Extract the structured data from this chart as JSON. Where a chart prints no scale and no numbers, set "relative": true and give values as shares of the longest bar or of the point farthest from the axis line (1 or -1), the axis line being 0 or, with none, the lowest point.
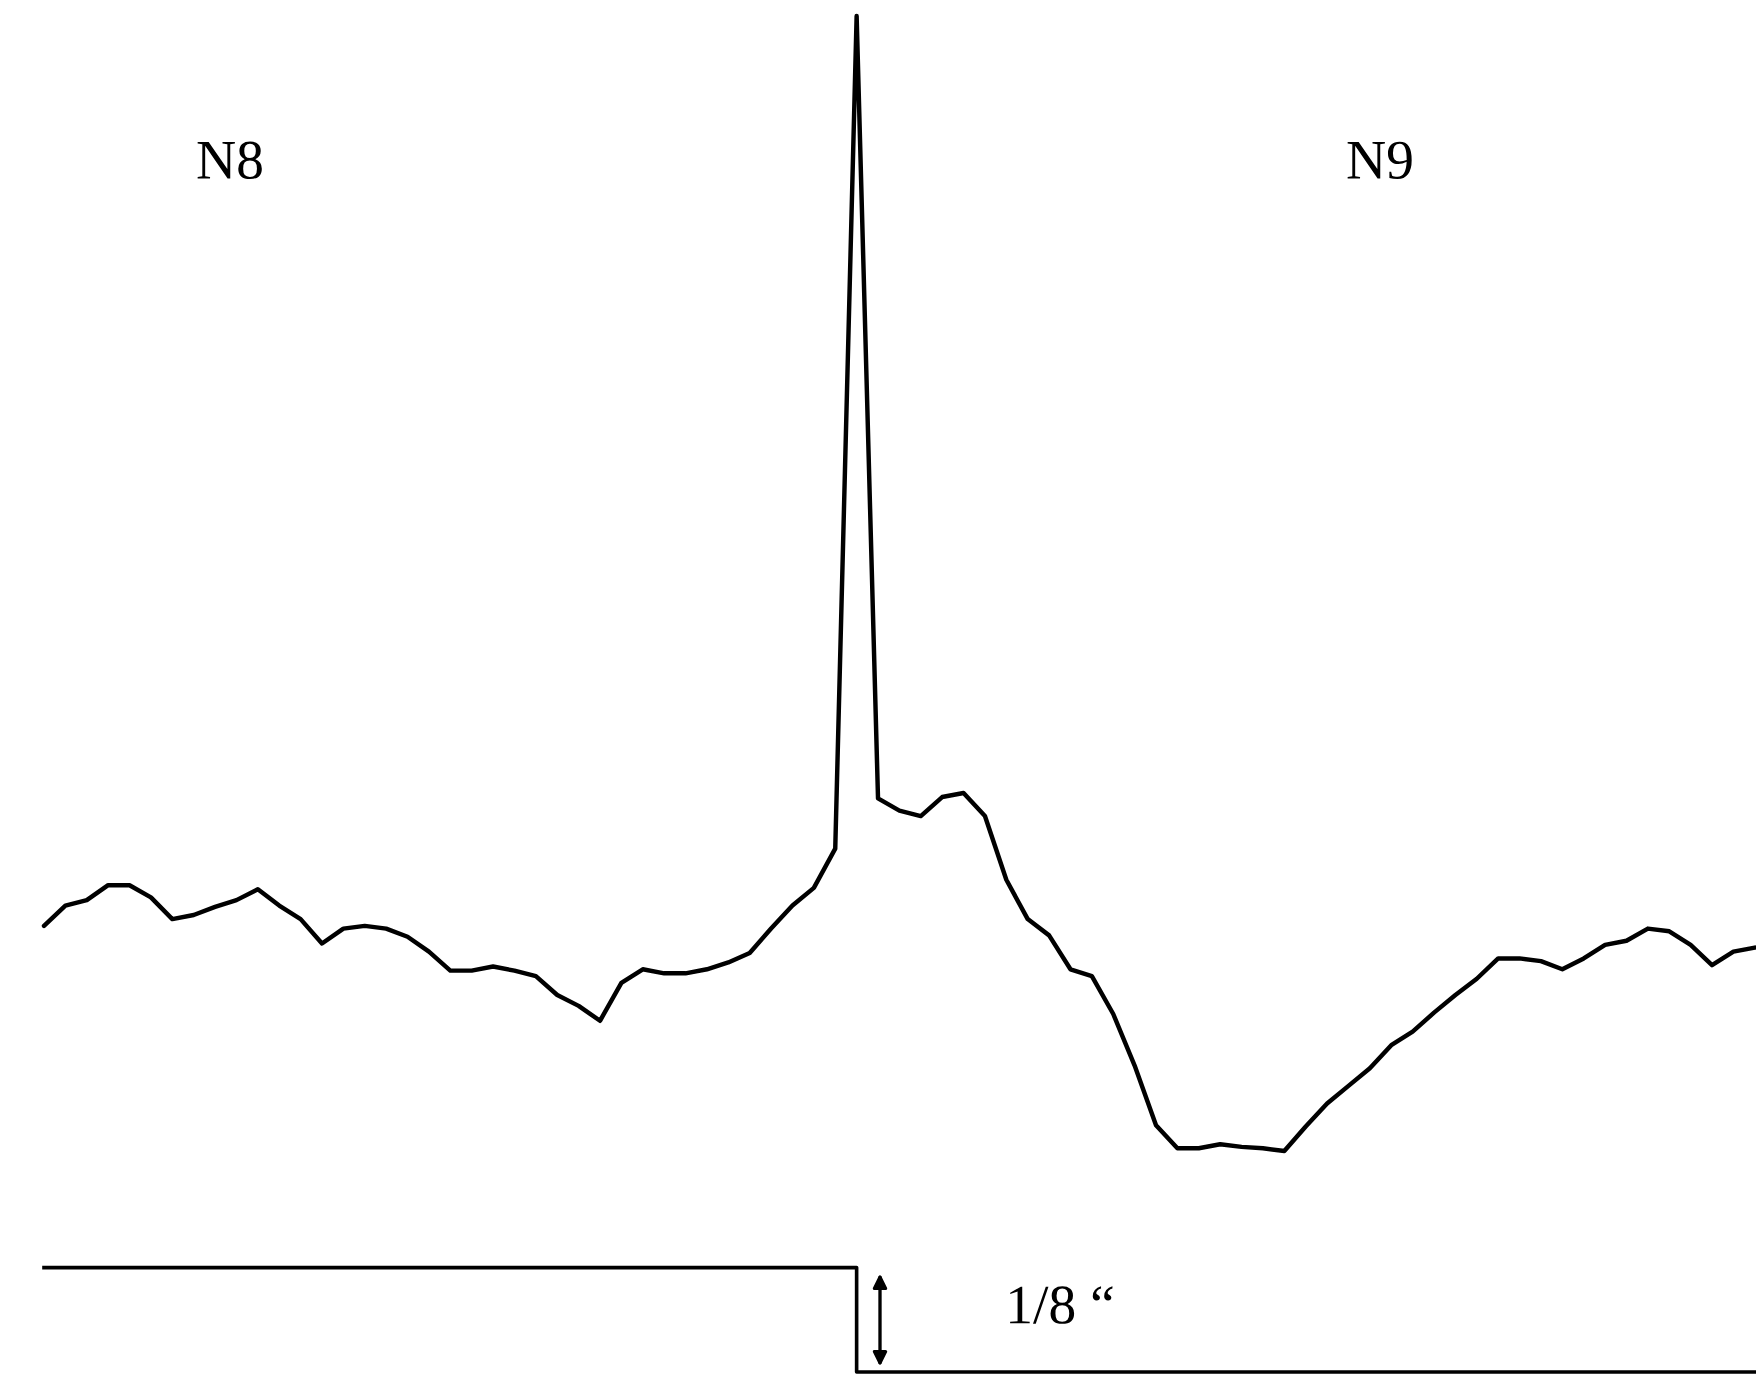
{
  "chart_data": {
    "type": "line",
    "relative": true,
    "categories": [
      null,
      null,
      null,
      null,
      null,
      null,
      null,
      null,
      null,
      null,
      null,
      null,
      null,
      null,
      null,
      null,
      null,
      null,
      null,
      null,
      null,
      null,
      null,
      null,
      null,
      null,
      null,
      null,
      null,
      null,
      null,
      null,
      null,
      null,
      null,
      null,
      null,
      null,
      null,
      null,
      null,
      null,
      null,
      null,
      null,
      null,
      null,
      null,
      null,
      null,
      null,
      null,
      null,
      null,
      null,
      null,
      null,
      null,
      null,
      null,
      null,
      null,
      null,
      null,
      null,
      null,
      null,
      null,
      null,
      null,
      null,
      null,
      null,
      null,
      null,
      null,
      null,
      null,
      null,
      null,
      null
    ],
    "series": [
      {
        "type": "line",
        "color": "#000000",
        "values": [
          0.329,
          0.344,
          0.348,
          0.359,
          0.359,
          0.35,
          0.334,
          0.337,
          0.343,
          0.348,
          0.356,
          0.344,
          0.334,
          0.316,
          0.327,
          0.329,
          0.327,
          0.321,
          0.31,
          0.296,
          0.296,
          0.299,
          0.296,
          0.292,
          0.278,
          0.27,
          0.259,
          0.287,
          0.297,
          0.294,
          0.294,
          0.297,
          0.302,
          0.309,
          0.327,
          0.344,
          0.357,
          0.386,
          1.0,
          0.423,
          0.414,
          0.41,
          0.424,
          0.427,
          0.41,
          0.363,
          0.334,
          0.322,
          0.297,
          0.292,
          0.264,
          0.226,
          0.182,
          0.165,
          0.165,
          0.168,
          0.166,
          0.165,
          0.163,
          0.181,
          0.198,
          0.211,
          0.224,
          0.241,
          0.251,
          0.265,
          0.278,
          0.29,
          0.305,
          0.305,
          0.303,
          0.297,
          0.305,
          0.315,
          0.318,
          0.327,
          0.325,
          0.315,
          0.3,
          0.31,
          0.313
        ]
      },
      {
        "type": "step",
        "color": "#000000",
        "values": [
          0.077,
          0.077,
          0.077,
          0.077,
          0.077,
          0.077,
          0.077,
          0.077,
          0.077,
          0.077,
          0.077,
          0.077,
          0.077,
          0.077,
          0.077,
          0.077,
          0.077,
          0.077,
          0.077,
          0.077,
          0.077,
          0.077,
          0.077,
          0.077,
          0.077,
          0.077,
          0.077,
          0.077,
          0.077,
          0.077,
          0.077,
          0.077,
          0.077,
          0.077,
          0.077,
          0.077,
          0.077,
          0.077,
          0,
          0,
          0,
          0,
          0,
          0,
          0,
          0,
          0,
          0,
          0,
          0,
          0,
          0,
          0,
          0,
          0,
          0,
          0,
          0,
          0,
          0,
          0,
          0,
          0,
          0,
          0,
          0,
          0,
          0,
          0,
          0,
          0,
          0,
          0,
          0,
          0,
          0,
          0,
          0,
          0,
          0,
          0
        ]
      }
    ],
    "annotations": [
      "N8",
      "N9",
      "1/8 “"
    ]
  }
}
